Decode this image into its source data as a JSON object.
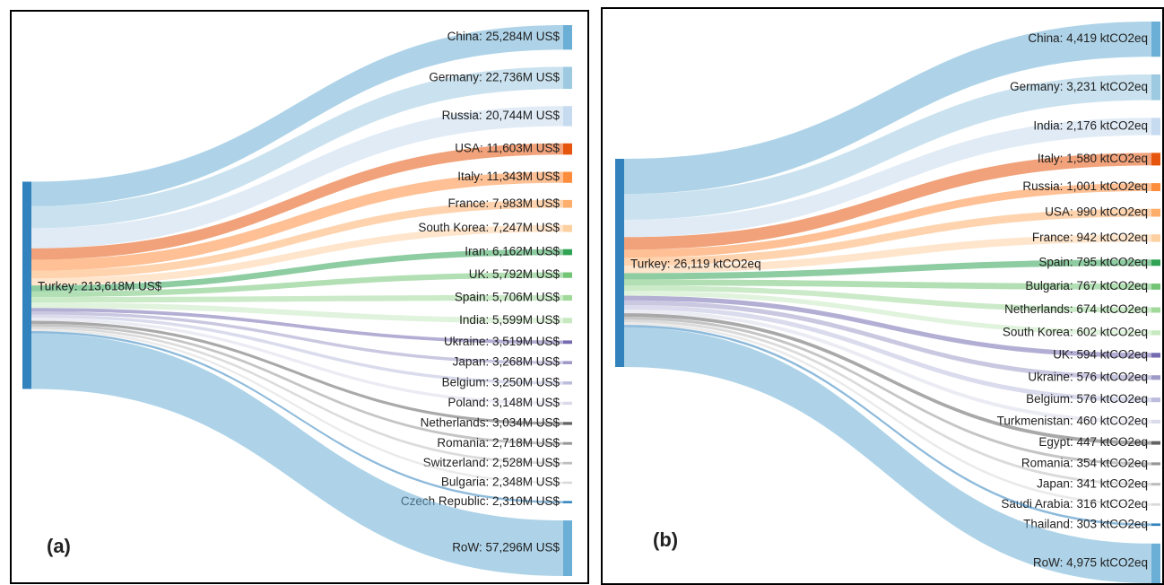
{
  "chart_data": [
    {
      "type": "sankey",
      "panel_label": "(a)",
      "source": {
        "value": 213618,
        "label": "Turkey: 213,618M US$",
        "color": "#3182bd"
      },
      "values": [
        25284,
        22736,
        20744,
        11603,
        11343,
        7983,
        7247,
        6162,
        5792,
        5706,
        5599,
        3519,
        3268,
        3250,
        3148,
        3034,
        2718,
        2528,
        2348,
        2310,
        57296
      ],
      "value_labels": [
        "China: 25,284M US$",
        "Germany: 22,736M US$",
        "Russia: 20,744M US$",
        "USA: 11,603M US$",
        "Italy: 11,343M US$",
        "France: 7,983M US$",
        "South Korea: 7,247M US$",
        "Iran: 6,162M US$",
        "UK: 5,792M US$",
        "Spain: 5,706M US$",
        "India: 5,599M US$",
        "Ukraine: 3,519M US$",
        "Japan: 3,268M US$",
        "Belgium: 3,250M US$",
        "Poland: 3,148M US$",
        "Netherlands: 3,034M US$",
        "Romania: 2,718M US$",
        "Switzerland: 2,528M US$",
        "Bulgaria: 2,348M US$",
        "Czech Republic: 2,310M US$",
        "RoW: 57,296M US$"
      ],
      "colors": [
        "#6baed6",
        "#9ecae1",
        "#c6dbef",
        "#e6550d",
        "#fd8d3c",
        "#fdae6b",
        "#fdd0a2",
        "#31a354",
        "#74c476",
        "#a1d99b",
        "#c7e9c0",
        "#756bb1",
        "#9e9ac8",
        "#bcbddc",
        "#dadaeb",
        "#636363",
        "#969696",
        "#bdbdbd",
        "#d9d9d9",
        "#3182bd",
        "#6baed6"
      ]
    },
    {
      "type": "sankey",
      "panel_label": "(b)",
      "source": {
        "value": 26119,
        "label": "Turkey: 26,119 ktCO2eq",
        "color": "#3182bd"
      },
      "values": [
        4419,
        3231,
        2176,
        1580,
        1001,
        990,
        942,
        795,
        767,
        674,
        602,
        594,
        576,
        576,
        460,
        447,
        354,
        341,
        316,
        303,
        4975
      ],
      "value_labels": [
        "China: 4,419 ktCO2eq",
        "Germany: 3,231 ktCO2eq",
        "India: 2,176 ktCO2eq",
        "Italy: 1,580 ktCO2eq",
        "Russia: 1,001 ktCO2eq",
        "USA: 990 ktCO2eq",
        "France: 942 ktCO2eq",
        "Spain: 795 ktCO2eq",
        "Bulgaria: 767 ktCO2eq",
        "Netherlands: 674 ktCO2eq",
        "South Korea: 602 ktCO2eq",
        "UK: 594 ktCO2eq",
        "Ukraine: 576 ktCO2eq",
        "Belgium: 576 ktCO2eq",
        "Turkmenistan: 460 ktCO2eq",
        "Egypt: 447 ktCO2eq",
        "Romania: 354 ktCO2eq",
        "Japan: 341 ktCO2eq",
        "Saudi Arabia: 316 ktCO2eq",
        "Thailand: 303 ktCO2eq",
        "RoW: 4,975 ktCO2eq"
      ],
      "colors": [
        "#6baed6",
        "#9ecae1",
        "#c6dbef",
        "#e6550d",
        "#fd8d3c",
        "#fdae6b",
        "#fdd0a2",
        "#31a354",
        "#74c476",
        "#a1d99b",
        "#c7e9c0",
        "#756bb1",
        "#9e9ac8",
        "#bcbddc",
        "#dadaeb",
        "#636363",
        "#969696",
        "#bdbdbd",
        "#d9d9d9",
        "#3182bd",
        "#6baed6"
      ]
    }
  ]
}
